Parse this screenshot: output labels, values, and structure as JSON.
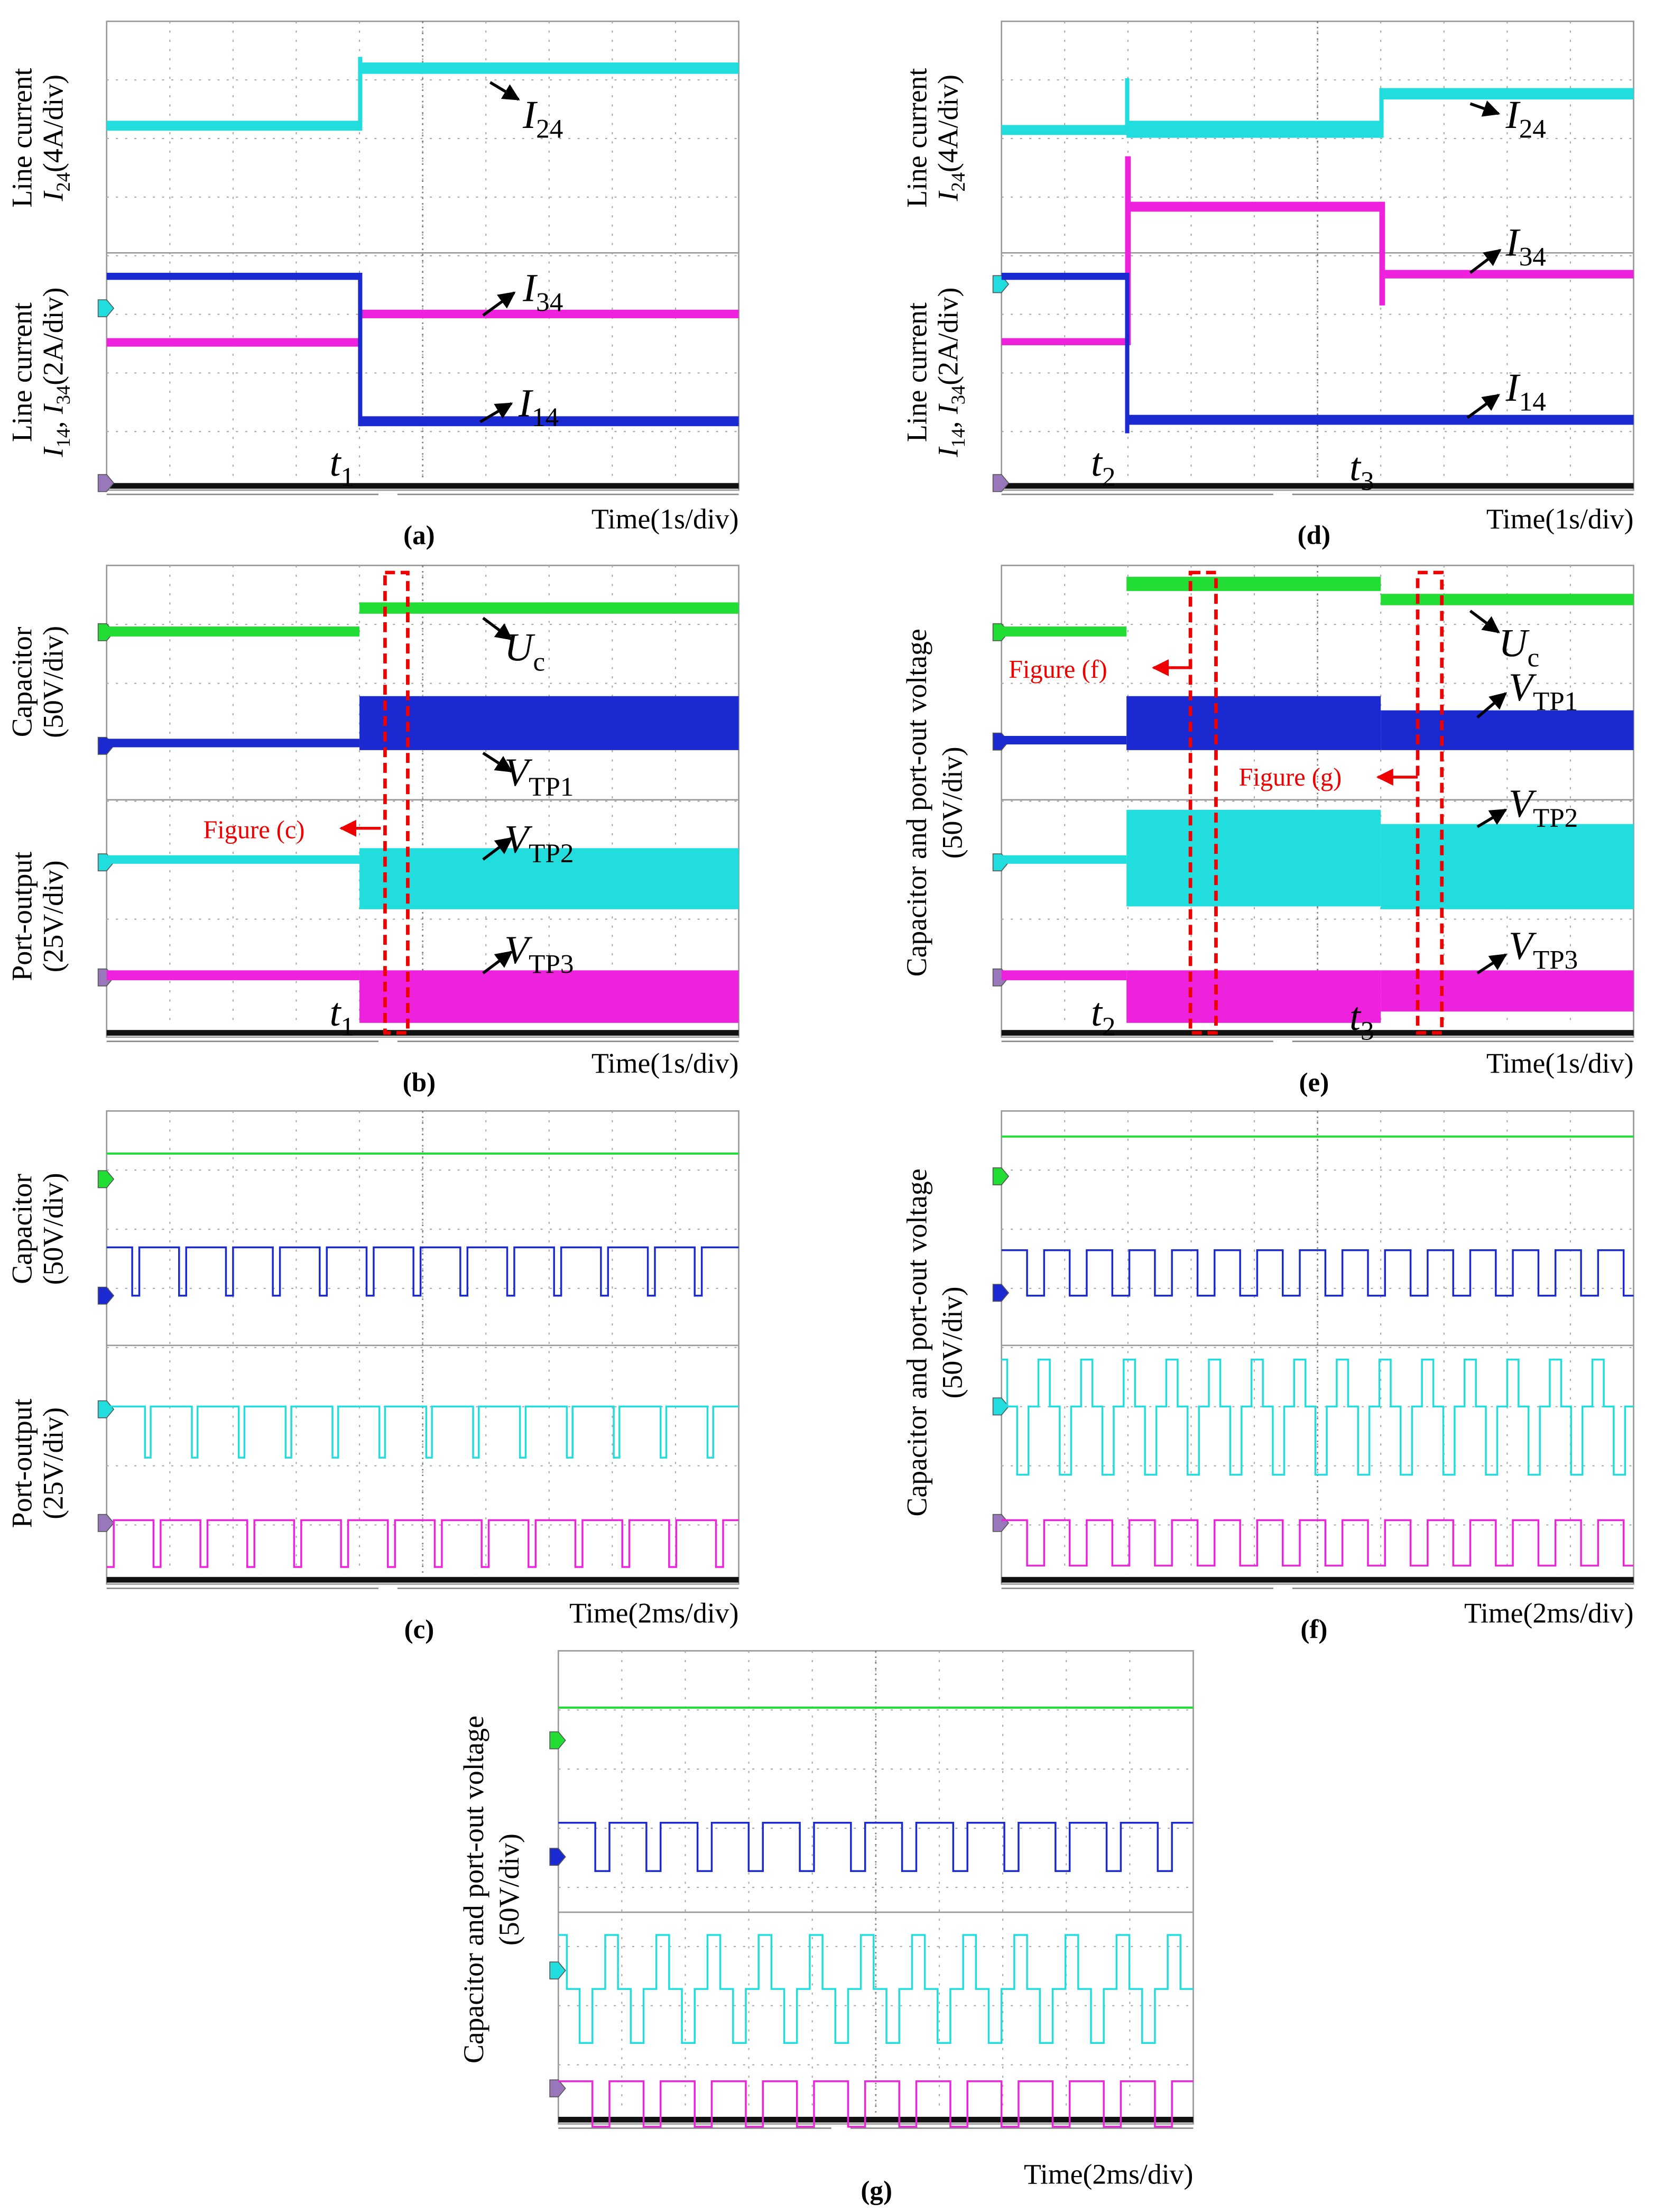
{
  "panels": [
    {
      "label": "(a)",
      "time": "Time(1s/div)",
      "axes": [
        {
          "lines": [
            [
              {
                "text": "Line current"
              }
            ],
            [
              {
                "text": "I",
                "style": "it"
              },
              {
                "text": "24",
                "style": "sub"
              },
              {
                "text": "(4A/div)"
              }
            ]
          ]
        },
        {
          "lines": [
            [
              {
                "text": "Line current"
              }
            ],
            [
              {
                "text": "I",
                "style": "it"
              },
              {
                "text": "14",
                "style": "sub"
              },
              {
                "text": ", "
              },
              {
                "text": "I",
                "style": "it"
              },
              {
                "text": "34",
                "style": "sub"
              },
              {
                "text": "(2A/div)"
              }
            ]
          ]
        }
      ],
      "signals": [
        [
          {
            "text": "I",
            "style": "it"
          },
          {
            "text": "24",
            "style": "sub"
          }
        ],
        [
          {
            "text": "I",
            "style": "it"
          },
          {
            "text": "34",
            "style": "sub"
          }
        ],
        [
          {
            "text": "I",
            "style": "it"
          },
          {
            "text": "14",
            "style": "sub"
          }
        ]
      ],
      "instants": [
        [
          {
            "text": "t",
            "style": "it"
          },
          {
            "text": "1",
            "style": "sub"
          }
        ]
      ],
      "notes": []
    },
    {
      "label": "(b)",
      "time": "Time(1s/div)",
      "axes": [
        {
          "lines": [
            [
              {
                "text": "Capacitor"
              }
            ],
            [
              {
                "text": "(50V/div)"
              }
            ]
          ]
        },
        {
          "lines": [
            [
              {
                "text": "Port-output"
              }
            ],
            [
              {
                "text": "(25V/div)"
              }
            ]
          ]
        }
      ],
      "signals": [
        [
          {
            "text": "U",
            "style": "it"
          },
          {
            "text": "c",
            "style": "sub"
          }
        ],
        [
          {
            "text": "V",
            "style": "it"
          },
          {
            "text": "TP1",
            "style": "sub"
          }
        ],
        [
          {
            "text": "V",
            "style": "it"
          },
          {
            "text": "TP2",
            "style": "sub"
          }
        ],
        [
          {
            "text": "V",
            "style": "it"
          },
          {
            "text": "TP3",
            "style": "sub"
          }
        ]
      ],
      "instants": [
        [
          {
            "text": "t",
            "style": "it"
          },
          {
            "text": "1",
            "style": "sub"
          }
        ]
      ],
      "notes": [
        "Figure (c)"
      ]
    },
    {
      "label": "(c)",
      "time": "Time(2ms/div)",
      "axes": [
        {
          "lines": [
            [
              {
                "text": "Capacitor"
              }
            ],
            [
              {
                "text": "(50V/div)"
              }
            ]
          ]
        },
        {
          "lines": [
            [
              {
                "text": "Port-output"
              }
            ],
            [
              {
                "text": "(25V/div)"
              }
            ]
          ]
        }
      ],
      "signals": [],
      "instants": [],
      "notes": []
    },
    {
      "label": "(d)",
      "time": "Time(1s/div)",
      "axes": [
        {
          "lines": [
            [
              {
                "text": "Line current"
              }
            ],
            [
              {
                "text": "I",
                "style": "it"
              },
              {
                "text": "24",
                "style": "sub"
              },
              {
                "text": "(4A/div)"
              }
            ]
          ]
        },
        {
          "lines": [
            [
              {
                "text": "Line current"
              }
            ],
            [
              {
                "text": "I",
                "style": "it"
              },
              {
                "text": "14",
                "style": "sub"
              },
              {
                "text": ", "
              },
              {
                "text": "I",
                "style": "it"
              },
              {
                "text": "34",
                "style": "sub"
              },
              {
                "text": "(2A/div)"
              }
            ]
          ]
        }
      ],
      "signals": [
        [
          {
            "text": "I",
            "style": "it"
          },
          {
            "text": "24",
            "style": "sub"
          }
        ],
        [
          {
            "text": "I",
            "style": "it"
          },
          {
            "text": "34",
            "style": "sub"
          }
        ],
        [
          {
            "text": "I",
            "style": "it"
          },
          {
            "text": "14",
            "style": "sub"
          }
        ]
      ],
      "instants": [
        [
          {
            "text": "t",
            "style": "it"
          },
          {
            "text": "2",
            "style": "sub"
          }
        ],
        [
          {
            "text": "t",
            "style": "it"
          },
          {
            "text": "3",
            "style": "sub"
          }
        ]
      ],
      "notes": []
    },
    {
      "label": "(e)",
      "time": "Time(1s/div)",
      "axes": [
        {
          "lines": [
            [
              {
                "text": "Capacitor and port-out voltage"
              }
            ],
            [
              {
                "text": "(50V/div)"
              }
            ]
          ]
        }
      ],
      "signals": [
        [
          {
            "text": "U",
            "style": "it"
          },
          {
            "text": "c",
            "style": "sub"
          }
        ],
        [
          {
            "text": "V",
            "style": "it"
          },
          {
            "text": "TP1",
            "style": "sub"
          }
        ],
        [
          {
            "text": "V",
            "style": "it"
          },
          {
            "text": "TP2",
            "style": "sub"
          }
        ],
        [
          {
            "text": "V",
            "style": "it"
          },
          {
            "text": "TP3",
            "style": "sub"
          }
        ]
      ],
      "instants": [
        [
          {
            "text": "t",
            "style": "it"
          },
          {
            "text": "2",
            "style": "sub"
          }
        ],
        [
          {
            "text": "t",
            "style": "it"
          },
          {
            "text": "3",
            "style": "sub"
          }
        ]
      ],
      "notes": [
        "Figure (f)",
        "Figure (g)"
      ]
    },
    {
      "label": "(f)",
      "time": "Time(2ms/div)",
      "axes": [
        {
          "lines": [
            [
              {
                "text": "Capacitor and port-out voltage"
              }
            ],
            [
              {
                "text": "(50V/div)"
              }
            ]
          ]
        }
      ],
      "signals": [],
      "instants": [],
      "notes": []
    },
    {
      "label": "(g)",
      "time": "Time(2ms/div)",
      "axes": [
        {
          "lines": [
            [
              {
                "text": "Capacitor and port-out voltage"
              }
            ],
            [
              {
                "text": "(50V/div)"
              }
            ]
          ]
        }
      ],
      "signals": [],
      "instants": [],
      "notes": []
    }
  ]
}
